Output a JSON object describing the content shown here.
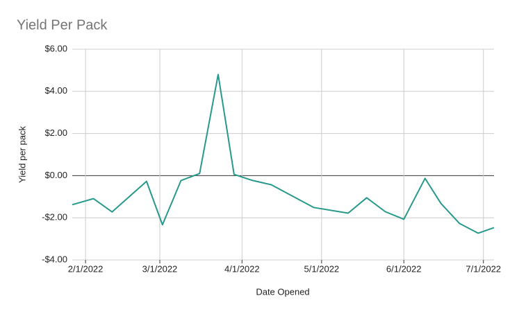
{
  "chart_data": {
    "type": "line",
    "title": "Yield Per Pack",
    "x_label": "Date Opened",
    "y_label": "Yield per pack",
    "x": [
      "1/27/2022",
      "2/4/2022",
      "2/11/2022",
      "2/24/2022",
      "3/2/2022",
      "3/9/2022",
      "3/16/2022",
      "3/23/2022",
      "3/29/2022",
      "4/5/2022",
      "4/12/2022",
      "4/28/2022",
      "5/11/2022",
      "5/18/2022",
      "5/25/2022",
      "6/1/2022",
      "6/9/2022",
      "6/15/2022",
      "6/22/2022",
      "6/29/2022",
      "7/5/2022"
    ],
    "series": [
      {
        "name": "Yield per pack",
        "color": "#26998a",
        "values": [
          -1.38,
          -1.09,
          -1.72,
          -0.27,
          -2.33,
          -0.23,
          0.1,
          4.8,
          0.06,
          -0.23,
          -0.43,
          -1.51,
          -1.78,
          -1.05,
          -1.71,
          -2.07,
          -0.13,
          -1.32,
          -2.27,
          -2.73,
          -2.47
        ]
      }
    ],
    "xlim": [
      "1/27/2022",
      "7/5/2022"
    ],
    "xticks": [
      "2/1/2022",
      "3/1/2022",
      "4/1/2022",
      "5/1/2022",
      "6/1/2022",
      "7/1/2022"
    ],
    "ylim": [
      -4,
      6
    ],
    "yticks": [
      {
        "value": -4,
        "label": "-$4.00"
      },
      {
        "value": -2,
        "label": "-$2.00"
      },
      {
        "value": 0,
        "label": "$0.00"
      },
      {
        "value": 2,
        "label": "$2.00"
      },
      {
        "value": 4,
        "label": "$4.00"
      },
      {
        "value": 6,
        "label": "$6.00"
      }
    ],
    "grid": true
  }
}
